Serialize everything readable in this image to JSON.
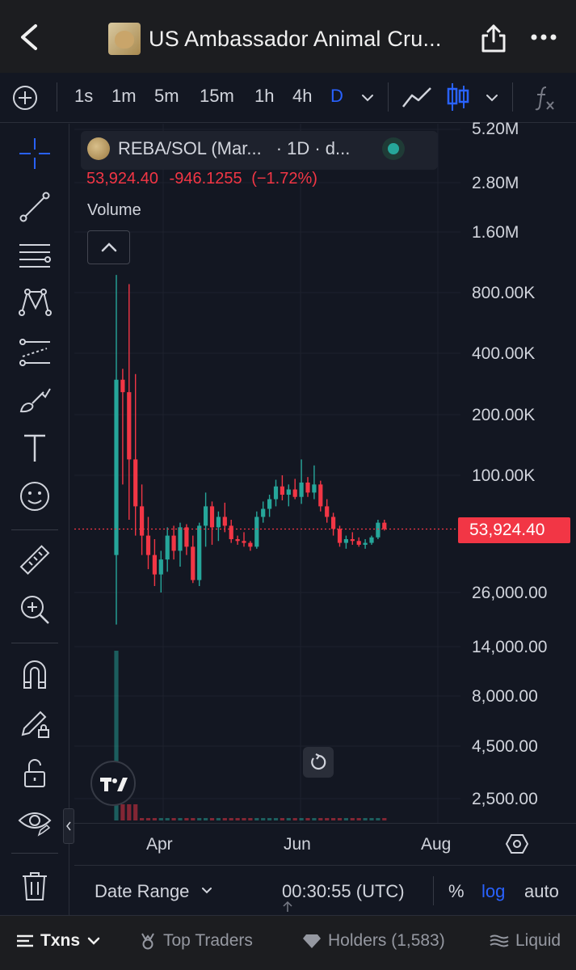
{
  "header": {
    "title": "US Ambassador Animal Cru..."
  },
  "toolbar": {
    "intervals": [
      "1s",
      "1m",
      "5m",
      "15m",
      "1h",
      "4h",
      "D"
    ],
    "active_interval": "D",
    "accent": "#2962ff"
  },
  "legend": {
    "symbol": "REBA/SOL (Mar...",
    "interval_info": "· 1D · d...",
    "price": "53,924.40",
    "change": "-946.1255",
    "change_pct": "(−1.72%)",
    "volume_label": "Volume",
    "status_color": "#26a69a"
  },
  "price_axis": {
    "labels": [
      "5.20M",
      "2.80M",
      "1.60M",
      "800.00K",
      "400.00K",
      "200.00K",
      "100.00K",
      "26,000.00",
      "14,000.00",
      "8,000.00",
      "4,500.00",
      "2,500.00"
    ],
    "last_price": "53,924.40"
  },
  "time_axis": {
    "labels": [
      "Apr",
      "Jun",
      "Aug"
    ]
  },
  "bottom_bar": {
    "date_range": "Date Range",
    "time": "00:30:55 (UTC)",
    "percent": "%",
    "log": "log",
    "auto": "auto"
  },
  "tabs": {
    "txns": "Txns",
    "top_traders": "Top Traders",
    "holders": "Holders (1,583)",
    "liquidity": "Liquid"
  },
  "colors": {
    "up": "#26a69a",
    "down": "#f23645",
    "background": "#131722"
  },
  "chart_data": {
    "type": "candlestick",
    "scale": "log",
    "ylim": [
      2500,
      5200000
    ],
    "x_labels": [
      "Apr",
      "Jun",
      "Aug"
    ],
    "last_value": 53924.4,
    "series": [
      {
        "values": [
          {
            "o": 40000,
            "h": 1000000,
            "l": 18000,
            "c": 300000
          },
          {
            "o": 300000,
            "h": 340000,
            "l": 90000,
            "c": 260000
          },
          {
            "o": 260000,
            "h": 900000,
            "l": 60000,
            "c": 120000
          },
          {
            "o": 120000,
            "h": 320000,
            "l": 50000,
            "c": 70000
          },
          {
            "o": 70000,
            "h": 90000,
            "l": 40000,
            "c": 50000
          },
          {
            "o": 50000,
            "h": 62000,
            "l": 34000,
            "c": 40000
          },
          {
            "o": 40000,
            "h": 48000,
            "l": 28000,
            "c": 32000
          },
          {
            "o": 32000,
            "h": 42000,
            "l": 26000,
            "c": 38000
          },
          {
            "o": 38000,
            "h": 55000,
            "l": 33000,
            "c": 50000
          },
          {
            "o": 50000,
            "h": 56000,
            "l": 38000,
            "c": 42000
          },
          {
            "o": 42000,
            "h": 58000,
            "l": 35000,
            "c": 55000
          },
          {
            "o": 55000,
            "h": 57000,
            "l": 40000,
            "c": 44000
          },
          {
            "o": 44000,
            "h": 50000,
            "l": 29000,
            "c": 30000
          },
          {
            "o": 30000,
            "h": 58000,
            "l": 28000,
            "c": 56000
          },
          {
            "o": 56000,
            "h": 82000,
            "l": 44000,
            "c": 70000
          },
          {
            "o": 70000,
            "h": 74000,
            "l": 45000,
            "c": 55000
          },
          {
            "o": 55000,
            "h": 66000,
            "l": 47000,
            "c": 62000
          },
          {
            "o": 62000,
            "h": 73000,
            "l": 52000,
            "c": 56000
          },
          {
            "o": 56000,
            "h": 60000,
            "l": 46000,
            "c": 48000
          },
          {
            "o": 48000,
            "h": 50000,
            "l": 45000,
            "c": 47000
          },
          {
            "o": 47000,
            "h": 52000,
            "l": 44000,
            "c": 46000
          },
          {
            "o": 46000,
            "h": 47000,
            "l": 42000,
            "c": 44000
          },
          {
            "o": 44000,
            "h": 66000,
            "l": 43000,
            "c": 62000
          },
          {
            "o": 62000,
            "h": 74000,
            "l": 58000,
            "c": 68000
          },
          {
            "o": 68000,
            "h": 80000,
            "l": 62000,
            "c": 76000
          },
          {
            "o": 76000,
            "h": 95000,
            "l": 70000,
            "c": 88000
          },
          {
            "o": 88000,
            "h": 100000,
            "l": 75000,
            "c": 80000
          },
          {
            "o": 80000,
            "h": 90000,
            "l": 70000,
            "c": 85000
          },
          {
            "o": 85000,
            "h": 96000,
            "l": 76000,
            "c": 78000
          },
          {
            "o": 78000,
            "h": 120000,
            "l": 72000,
            "c": 92000
          },
          {
            "o": 92000,
            "h": 98000,
            "l": 78000,
            "c": 82000
          },
          {
            "o": 82000,
            "h": 112000,
            "l": 76000,
            "c": 90000
          },
          {
            "o": 90000,
            "h": 94000,
            "l": 66000,
            "c": 70000
          },
          {
            "o": 70000,
            "h": 76000,
            "l": 58000,
            "c": 62000
          },
          {
            "o": 62000,
            "h": 65000,
            "l": 50000,
            "c": 54000
          },
          {
            "o": 54000,
            "h": 56000,
            "l": 44000,
            "c": 46000
          },
          {
            "o": 46000,
            "h": 50000,
            "l": 43000,
            "c": 48000
          },
          {
            "o": 48000,
            "h": 52000,
            "l": 45000,
            "c": 47000
          },
          {
            "o": 47000,
            "h": 49000,
            "l": 44000,
            "c": 45000
          },
          {
            "o": 45000,
            "h": 48000,
            "l": 43000,
            "c": 46000
          },
          {
            "o": 46000,
            "h": 50000,
            "l": 45000,
            "c": 49000
          },
          {
            "o": 49000,
            "h": 60000,
            "l": 48000,
            "c": 58000
          },
          {
            "o": 58000,
            "h": 60000,
            "l": 53000,
            "c": 53924.4
          }
        ]
      }
    ]
  }
}
